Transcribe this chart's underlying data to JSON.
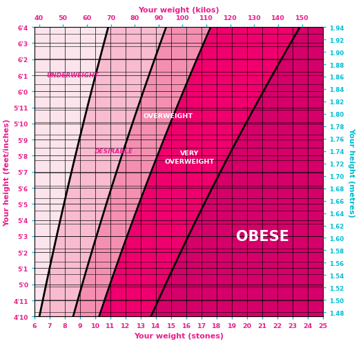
{
  "title_top": "Your weight (kilos)",
  "title_bottom": "Your weight (stones)",
  "title_left": "Your height (feet/inches)",
  "title_right": "Your height (metres)",
  "stones_min": 6,
  "stones_max": 25,
  "feet_inches_labels": [
    "4'10",
    "4'11",
    "5'0",
    "5'1",
    "5'2",
    "5'3",
    "5'4",
    "5'5",
    "5'6",
    "5'7",
    "5'8",
    "5'9",
    "5'10",
    "5'11",
    "6'0",
    "6'1",
    "6'2",
    "6'3",
    "6'4"
  ],
  "feet_inches_values": [
    1.4732,
    1.4986,
    1.524,
    1.5494,
    1.5748,
    1.6002,
    1.6256,
    1.651,
    1.6764,
    1.7018,
    1.7272,
    1.7526,
    1.778,
    1.8034,
    1.8288,
    1.8542,
    1.8796,
    1.905,
    1.9304
  ],
  "metres_labels": [
    "1.48",
    "1.50",
    "1.52",
    "1.54",
    "1.56",
    "1.58",
    "1.60",
    "1.62",
    "1.64",
    "1.66",
    "1.68",
    "1.70",
    "1.72",
    "1.74",
    "1.76",
    "1.78",
    "1.80",
    "1.82",
    "1.84",
    "1.86",
    "1.88",
    "1.90",
    "1.92",
    "1.94"
  ],
  "kilos_labels": [
    "40",
    "50",
    "60",
    "70",
    "80",
    "90",
    "100",
    "110",
    "120",
    "130",
    "140",
    "150"
  ],
  "kilos_values": [
    40,
    50,
    60,
    70,
    80,
    90,
    100,
    110,
    120,
    130,
    140,
    150
  ],
  "stones_labels": [
    "6",
    "7",
    "8",
    "9",
    "10",
    "11",
    "12",
    "13",
    "14",
    "15",
    "16",
    "17",
    "18",
    "19",
    "20",
    "21",
    "22",
    "23",
    "24",
    "25"
  ],
  "bmi_18": 18.5,
  "bmi_25": 25.0,
  "bmi_30": 30.0,
  "bmi_40": 40.0,
  "color_underweight": "#fce4ec",
  "color_desirable": "#f8bbd0",
  "color_overweight": "#f48fb1",
  "color_very_overweight": "#f0006e",
  "color_obese": "#d5006a",
  "magenta": "#e91e8c",
  "cyan": "#00bcd4",
  "white": "#ffffff",
  "label_underweight": "UNDERWEIGHT",
  "label_desirable": "DESIRABLE",
  "label_overweight": "OVERWEIGHT",
  "label_very_overweight": "VERY\nOVERWEIGHT",
  "label_obese": "OBESE",
  "stone_to_kg": 6.35029
}
